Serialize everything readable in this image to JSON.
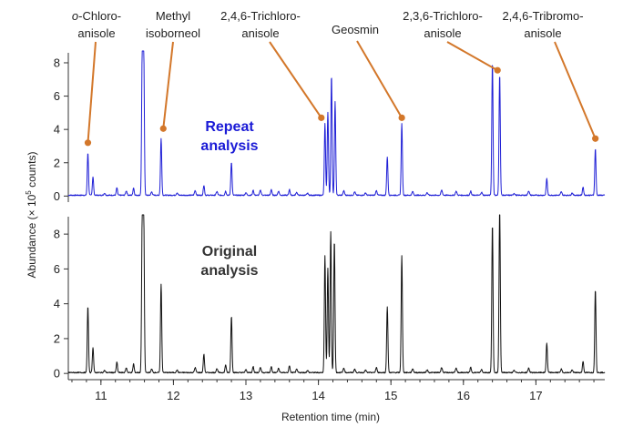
{
  "chart_data": {
    "type": "line",
    "xlabel": "Retention time (min)",
    "ylabel": "Abundance (× 10",
    "ylabel_sup": "5",
    "ylabel_tail": " counts)",
    "xlim": [
      10.55,
      17.95
    ],
    "x_ticks": [
      11,
      12,
      13,
      14,
      15,
      16,
      17
    ],
    "panels": [
      {
        "name": "Repeat analysis",
        "label_line1": "Repeat",
        "label_line2": "analysis",
        "color": "#1f1fd6",
        "label_color": "#1a1ad6",
        "ylim": [
          -0.2,
          8.6
        ],
        "y_ticks": [
          0,
          2,
          4,
          6,
          8
        ],
        "peaks": [
          {
            "x": 10.82,
            "y": 2.55
          },
          {
            "x": 10.89,
            "y": 1.1
          },
          {
            "x": 11.22,
            "y": 0.45
          },
          {
            "x": 11.45,
            "y": 0.45
          },
          {
            "x": 11.57,
            "y": 8.6
          },
          {
            "x": 11.59,
            "y": 8.6
          },
          {
            "x": 11.83,
            "y": 3.4
          },
          {
            "x": 12.42,
            "y": 0.6
          },
          {
            "x": 12.72,
            "y": 0.25
          },
          {
            "x": 12.8,
            "y": 2.0
          },
          {
            "x": 13.1,
            "y": 0.3
          },
          {
            "x": 13.35,
            "y": 0.35
          },
          {
            "x": 13.6,
            "y": 0.35
          },
          {
            "x": 14.09,
            "y": 4.3
          },
          {
            "x": 14.13,
            "y": 5.0
          },
          {
            "x": 14.18,
            "y": 7.2
          },
          {
            "x": 14.23,
            "y": 5.6
          },
          {
            "x": 14.95,
            "y": 2.3
          },
          {
            "x": 15.15,
            "y": 4.3
          },
          {
            "x": 16.1,
            "y": 0.25
          },
          {
            "x": 16.4,
            "y": 8.0
          },
          {
            "x": 16.5,
            "y": 7.3
          },
          {
            "x": 17.15,
            "y": 1.0
          },
          {
            "x": 17.65,
            "y": 0.5
          },
          {
            "x": 17.82,
            "y": 2.8
          }
        ]
      },
      {
        "name": "Original analysis",
        "label_line1": "Original",
        "label_line2": "analysis",
        "color": "#111111",
        "label_color": "#333333",
        "ylim": [
          -0.2,
          9.0
        ],
        "y_ticks": [
          0,
          2,
          4,
          6,
          8
        ],
        "peaks": [
          {
            "x": 10.82,
            "y": 3.8
          },
          {
            "x": 10.89,
            "y": 1.45
          },
          {
            "x": 11.22,
            "y": 0.6
          },
          {
            "x": 11.45,
            "y": 0.5
          },
          {
            "x": 11.57,
            "y": 9.0
          },
          {
            "x": 11.59,
            "y": 9.0
          },
          {
            "x": 11.83,
            "y": 5.1
          },
          {
            "x": 12.42,
            "y": 1.05
          },
          {
            "x": 12.72,
            "y": 0.45
          },
          {
            "x": 12.8,
            "y": 3.25
          },
          {
            "x": 13.1,
            "y": 0.35
          },
          {
            "x": 13.35,
            "y": 0.35
          },
          {
            "x": 13.6,
            "y": 0.4
          },
          {
            "x": 14.09,
            "y": 6.7
          },
          {
            "x": 14.13,
            "y": 6.0
          },
          {
            "x": 14.17,
            "y": 8.1
          },
          {
            "x": 14.22,
            "y": 7.6
          },
          {
            "x": 14.95,
            "y": 3.8
          },
          {
            "x": 15.15,
            "y": 6.7
          },
          {
            "x": 16.1,
            "y": 0.3
          },
          {
            "x": 16.4,
            "y": 8.55
          },
          {
            "x": 16.5,
            "y": 9.6
          },
          {
            "x": 17.15,
            "y": 1.7
          },
          {
            "x": 17.65,
            "y": 0.65
          },
          {
            "x": 17.82,
            "y": 4.8
          }
        ]
      }
    ],
    "annotations": [
      {
        "line1": "o-Chloro-",
        "line2": "anisole",
        "x": 10.82,
        "y": 3.2
      },
      {
        "line1": "Methyl",
        "line2": "isoborneol",
        "x": 11.86,
        "y": 4.05
      },
      {
        "line1": "2,4,6-Trichloro-",
        "line2": "anisole",
        "x": 14.04,
        "y": 4.7
      },
      {
        "line1": "Geosmin",
        "line2": "",
        "x": 15.15,
        "y": 4.7
      },
      {
        "line1": "2,3,6-Trichloro-",
        "line2": "anisole",
        "x": 16.47,
        "y": 7.55
      },
      {
        "line1": "2,4,6-Tribromo-",
        "line2": "anisole",
        "x": 17.82,
        "y": 3.45
      }
    ],
    "marker_color": "#d3772a"
  }
}
